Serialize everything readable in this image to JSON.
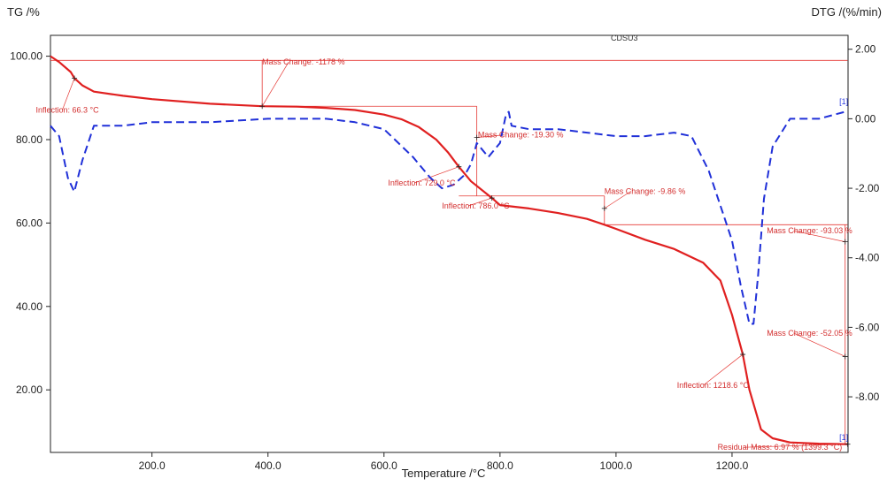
{
  "chart_data": {
    "type": "line",
    "title": "CDSU3",
    "xlabel": "Temperature /°C",
    "ylabel_left": "TG /%",
    "ylabel_right": "DTG /(%/min)",
    "xlim": [
      25,
      1400
    ],
    "ylim_left": [
      5,
      105
    ],
    "ylim_right": [
      -9.6,
      2.4
    ],
    "x_ticks": [
      {
        "value": 200,
        "label": "200.0"
      },
      {
        "value": 400,
        "label": "400.0"
      },
      {
        "value": 600,
        "label": "600.0"
      },
      {
        "value": 800,
        "label": "800.0"
      },
      {
        "value": 1000,
        "label": "1000.0"
      },
      {
        "value": 1200,
        "label": "1200.0"
      }
    ],
    "y_ticks_left": [
      {
        "value": 100,
        "label": "100.00"
      },
      {
        "value": 80,
        "label": "80.00"
      },
      {
        "value": 60,
        "label": "60.00"
      },
      {
        "value": 40,
        "label": "40.00"
      },
      {
        "value": 20,
        "label": "20.00"
      }
    ],
    "y_ticks_right": [
      {
        "value": 2,
        "label": "2.00"
      },
      {
        "value": 0,
        "label": "0.00"
      },
      {
        "value": -2,
        "label": "-2.00"
      },
      {
        "value": -4,
        "label": "-4.00"
      },
      {
        "value": -6,
        "label": "-6.00"
      },
      {
        "value": -8,
        "label": "-8.00"
      }
    ],
    "grid": false,
    "series": [
      {
        "axis": "left",
        "color": "#e02020",
        "dash": "solid",
        "x": [
          25,
          40,
          60,
          66.3,
          80,
          100,
          150,
          200,
          300,
          390,
          450,
          500,
          550,
          600,
          630,
          660,
          690,
          710,
          729,
          750,
          786,
          800,
          850,
          900,
          950,
          980,
          1000,
          1050,
          1100,
          1150,
          1180,
          1200,
          1218.6,
          1230,
          1250,
          1270,
          1300,
          1350,
          1399.3
        ],
        "y": [
          100.0,
          98.6,
          96.2,
          94.7,
          93.0,
          91.5,
          90.5,
          89.7,
          88.6,
          88.0,
          87.9,
          87.6,
          87.1,
          86.0,
          84.9,
          83.0,
          80.0,
          77.0,
          73.5,
          70.0,
          66.0,
          64.3,
          63.5,
          62.4,
          61.0,
          59.6,
          58.6,
          56.0,
          53.8,
          50.5,
          46.2,
          38.0,
          28.5,
          20.0,
          10.5,
          8.4,
          7.4,
          7.1,
          6.97
        ]
      },
      {
        "axis": "right",
        "color": "#2030d8",
        "dash": "dashed",
        "x": [
          25,
          40,
          55,
          66,
          80,
          100,
          150,
          200,
          300,
          400,
          500,
          550,
          600,
          650,
          680,
          700,
          720,
          740,
          750,
          760,
          780,
          800,
          810,
          815,
          820,
          850,
          900,
          950,
          1000,
          1050,
          1100,
          1130,
          1160,
          1180,
          1200,
          1215,
          1230,
          1237,
          1245,
          1255,
          1270,
          1300,
          1350,
          1395
        ],
        "y": [
          -0.2,
          -0.5,
          -1.7,
          -2.1,
          -1.2,
          -0.2,
          -0.2,
          -0.1,
          -0.1,
          0.0,
          0.0,
          -0.1,
          -0.3,
          -1.1,
          -1.7,
          -2.0,
          -1.9,
          -1.6,
          -1.3,
          -0.7,
          -1.1,
          -0.7,
          0.1,
          0.2,
          -0.2,
          -0.3,
          -0.3,
          -0.4,
          -0.5,
          -0.5,
          -0.4,
          -0.5,
          -1.5,
          -2.5,
          -3.5,
          -4.8,
          -5.9,
          -5.9,
          -4.5,
          -2.3,
          -0.8,
          0.0,
          0.0,
          0.2
        ]
      }
    ],
    "annotations": [
      {
        "text": "Inflection: 66.3 °C",
        "point": [
          66.3,
          94.7
        ],
        "label_at": [
          -0.25,
          86.5
        ]
      },
      {
        "text": "Mass Change: -1178 %",
        "point": [
          390,
          88.0
        ],
        "label_at": [
          390,
          98.0
        ]
      },
      {
        "text": "Inflection: 729.0 °C",
        "point": [
          729,
          73.5
        ],
        "label_at": [
          607,
          69.0
        ]
      },
      {
        "text": "Mass Change: -19.30 %",
        "point": [
          760,
          80.5
        ],
        "label_at": [
          762,
          80.5
        ]
      },
      {
        "text": "Inflection: 786.0 °C",
        "point": [
          786,
          66.0
        ],
        "label_at": [
          700,
          63.5
        ]
      },
      {
        "text": "Mass Change: -9.86 %",
        "point": [
          980,
          63.5
        ],
        "label_at": [
          980,
          67.0
        ]
      },
      {
        "text": "Mass Change: -93.03 %",
        "point": [
          1395,
          55.5
        ],
        "label_at": [
          1260,
          57.5
        ]
      },
      {
        "text": "Mass Change: -52.05 %",
        "point": [
          1395,
          28.0
        ],
        "label_at": [
          1260,
          33.0
        ]
      },
      {
        "text": "Inflection: 1218.6 °C",
        "point": [
          1218.6,
          28.5
        ],
        "label_at": [
          1105,
          20.5
        ]
      },
      {
        "text": "Residual Mass: 6.97 % (1399.3 °C)",
        "point": [
          1399.3,
          6.97
        ],
        "label_at": [
          1175,
          5.6
        ]
      }
    ],
    "markers": [
      {
        "text": "[1]",
        "at": [
          1385,
          88.5
        ]
      },
      {
        "text": "[1]",
        "at": [
          1385,
          8.0
        ]
      }
    ]
  }
}
